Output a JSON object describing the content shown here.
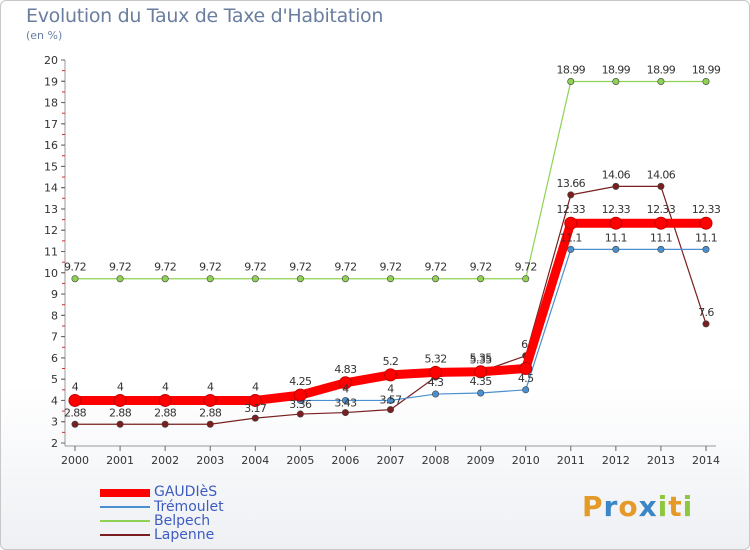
{
  "title": "Evolution du Taux de Taxe d'Habitation",
  "subtitle": "(en %)",
  "logo_text": "Proxiti",
  "chart_data": {
    "type": "line",
    "x": [
      "2000",
      "2001",
      "2002",
      "2003",
      "2004",
      "2005",
      "2006",
      "2007",
      "2008",
      "2009",
      "2010",
      "2011",
      "2012",
      "2013",
      "2014"
    ],
    "ylim": [
      2,
      20
    ],
    "yticks": [
      "2",
      "3",
      "4",
      "5",
      "6",
      "7",
      "8",
      "9",
      "10",
      "11",
      "12",
      "13",
      "14",
      "15",
      "16",
      "17",
      "18",
      "19",
      "20"
    ],
    "grid": false,
    "legend_position": "bottom-left",
    "series": [
      {
        "name": "Belpech",
        "color": "#8fd154",
        "values": [
          9.72,
          9.72,
          9.72,
          9.72,
          9.72,
          9.72,
          9.72,
          9.72,
          9.72,
          9.72,
          9.72,
          18.99,
          18.99,
          18.99,
          18.99
        ],
        "labels": [
          "9.72",
          "9.72",
          "9.72",
          "9.72",
          "9.72",
          "9.72",
          "9.72",
          "9.72",
          "9.72",
          "9.72",
          "9.72",
          "18.99",
          "18.99",
          "18.99",
          "18.99"
        ]
      },
      {
        "name": "Lapenne",
        "color": "#7a1f1f",
        "values": [
          2.88,
          2.88,
          2.88,
          2.88,
          3.17,
          3.36,
          3.43,
          3.57,
          5.1,
          5.35,
          6.1,
          13.66,
          14.06,
          14.06,
          7.6
        ],
        "labels": [
          "2.88",
          "2.88",
          "2.88",
          "2.88",
          "3.17",
          "3.36",
          "3.43",
          "3.57",
          "",
          "5.35",
          "6.",
          "13.66",
          "14.06",
          "14.06",
          "7.6"
        ]
      },
      {
        "name": "Trémoulet",
        "color": "#4a8fcf",
        "values": [
          4,
          4,
          4,
          4,
          4,
          4,
          4,
          4,
          4.3,
          4.35,
          4.5,
          11.1,
          11.1,
          11.1,
          11.1
        ],
        "labels": [
          "",
          "",
          "",
          "",
          "",
          "",
          "4",
          "4",
          "4.3",
          "4.35",
          "4.5",
          "11.1",
          "11.1",
          "11.1",
          "11.1"
        ]
      },
      {
        "name": "GAUDIèS",
        "color": "#ff0000",
        "values": [
          4,
          4,
          4,
          4,
          4,
          4.25,
          4.83,
          5.2,
          5.32,
          5.35,
          5.5,
          12.33,
          12.33,
          12.33,
          12.33
        ],
        "labels": [
          "4",
          "4",
          "4",
          "4",
          "4",
          "4.25",
          "4.83",
          "5.2",
          "5.32",
          "5.35",
          "",
          "12.33",
          "12.33",
          "12.33",
          "12.33"
        ]
      }
    ],
    "legend_order": [
      "GAUDIèS",
      "Trémoulet",
      "Belpech",
      "Lapenne"
    ]
  }
}
